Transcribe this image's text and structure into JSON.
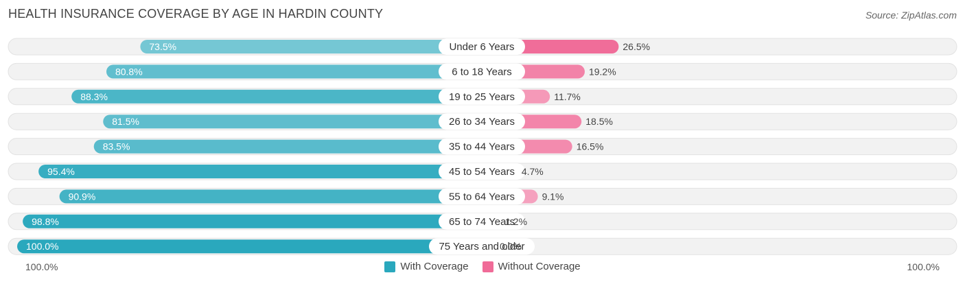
{
  "title": "HEALTH INSURANCE COVERAGE BY AGE IN HARDIN COUNTY",
  "source": "Source: ZipAtlas.com",
  "colors": {
    "with_coverage": "#2aa8bd",
    "without_coverage": "#f06b98",
    "track": "#efefef"
  },
  "chart_data": {
    "type": "bar",
    "orientation": "diverging-horizontal",
    "title": "HEALTH INSURANCE COVERAGE BY AGE IN HARDIN COUNTY",
    "categories": [
      "Under 6 Years",
      "6 to 18 Years",
      "19 to 25 Years",
      "26 to 34 Years",
      "35 to 44 Years",
      "45 to 54 Years",
      "55 to 64 Years",
      "65 to 74 Years",
      "75 Years and older"
    ],
    "series": [
      {
        "name": "With Coverage",
        "values": [
          73.5,
          80.8,
          88.3,
          81.5,
          83.5,
          95.4,
          90.9,
          98.8,
          100.0
        ],
        "labels": [
          "73.5%",
          "80.8%",
          "88.3%",
          "81.5%",
          "83.5%",
          "95.4%",
          "90.9%",
          "98.8%",
          "100.0%"
        ]
      },
      {
        "name": "Without Coverage",
        "values": [
          26.5,
          19.2,
          11.7,
          18.5,
          16.5,
          4.7,
          9.1,
          1.2,
          0.0
        ],
        "labels": [
          "26.5%",
          "19.2%",
          "11.7%",
          "18.5%",
          "16.5%",
          "4.7%",
          "9.1%",
          "1.2%",
          "0.0%"
        ]
      }
    ],
    "axis": {
      "left_label": "100.0%",
      "right_label": "100.0%",
      "range": [
        0,
        100
      ]
    },
    "legend": {
      "position": "bottom-center",
      "entries": [
        "With Coverage",
        "Without Coverage"
      ]
    }
  }
}
